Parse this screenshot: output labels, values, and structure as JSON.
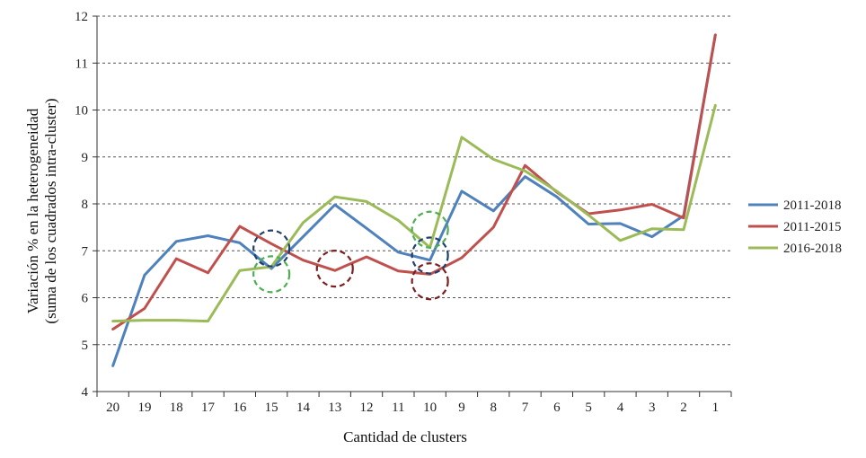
{
  "chart_data": {
    "type": "line",
    "title": "",
    "xlabel": "Cantidad de clusters",
    "ylabel_lines": [
      "Variación % en la heterogeneidad",
      "(suma de los cuadrados intra-cluster)"
    ],
    "categories": [
      "20",
      "19",
      "18",
      "17",
      "16",
      "15",
      "14",
      "13",
      "12",
      "11",
      "10",
      "9",
      "8",
      "7",
      "6",
      "5",
      "4",
      "3",
      "2",
      "1"
    ],
    "ylim": [
      4,
      12
    ],
    "yticks": [
      4,
      5,
      6,
      7,
      8,
      9,
      10,
      11,
      12
    ],
    "grid": "horizontal dashed",
    "legend_position": "right",
    "series": [
      {
        "name": "2011-2018",
        "color": "#4f81bd",
        "values": [
          4.55,
          6.48,
          7.2,
          7.32,
          7.17,
          6.62,
          7.3,
          7.98,
          7.48,
          6.97,
          6.8,
          8.27,
          7.85,
          8.58,
          8.15,
          7.57,
          7.58,
          7.3,
          7.75,
          11.6
        ]
      },
      {
        "name": "2011-2015",
        "color": "#c0504d",
        "values": [
          5.33,
          5.77,
          6.83,
          6.53,
          7.52,
          7.15,
          6.8,
          6.58,
          6.87,
          6.57,
          6.5,
          6.85,
          7.5,
          8.82,
          8.25,
          7.79,
          7.87,
          7.99,
          7.7,
          11.6
        ]
      },
      {
        "name": "2016-2018",
        "color": "#9bbb59",
        "values": [
          5.5,
          5.52,
          5.52,
          5.5,
          6.58,
          6.66,
          7.6,
          8.15,
          8.05,
          7.65,
          7.07,
          9.42,
          8.95,
          8.7,
          8.27,
          7.76,
          7.22,
          7.47,
          7.45,
          10.1
        ]
      }
    ],
    "annotations": [
      {
        "type": "dashed-circle",
        "category": "15",
        "value": 7.05,
        "color": "#1f3f6e"
      },
      {
        "type": "dashed-circle",
        "category": "15",
        "value": 6.5,
        "color": "#4caf50"
      },
      {
        "type": "dashed-circle",
        "category": "13",
        "value": 6.62,
        "color": "#7b1f1f"
      },
      {
        "type": "dashed-circle",
        "category": "10",
        "value": 7.45,
        "color": "#4caf50"
      },
      {
        "type": "dashed-circle",
        "category": "10",
        "value": 6.9,
        "color": "#1f3f6e"
      },
      {
        "type": "dashed-circle",
        "category": "10",
        "value": 6.35,
        "color": "#7b1f1f"
      }
    ]
  }
}
